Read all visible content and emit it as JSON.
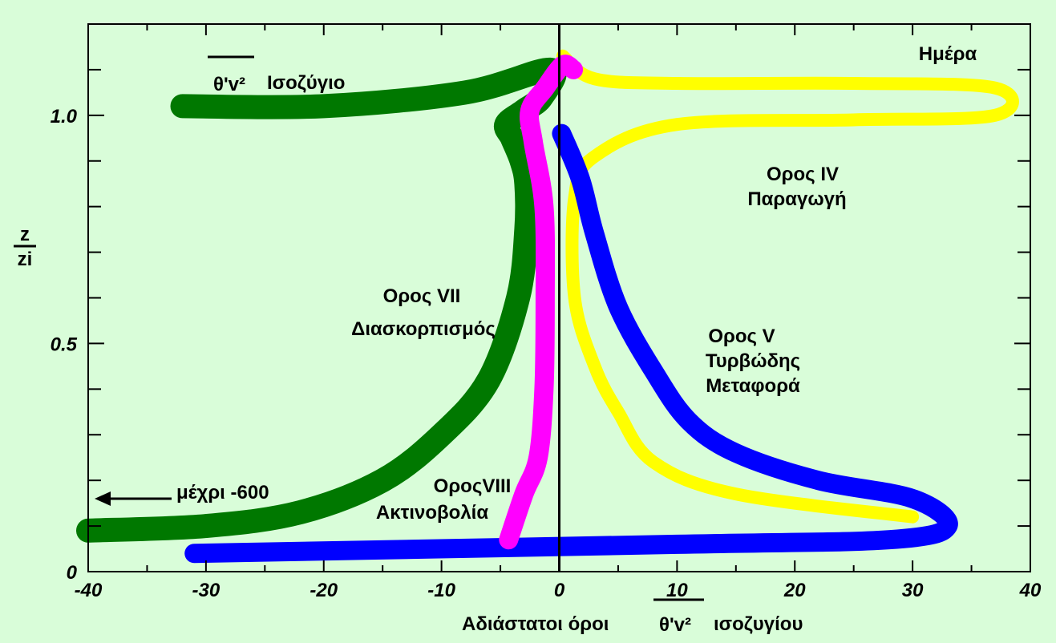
{
  "colors": {
    "background": "#d9fdd9",
    "term_vii": "#007800",
    "term_viii": "#ff00ff",
    "term_iv": "#ffff00",
    "term_v": "#0000ff"
  },
  "chart_data": {
    "type": "line",
    "title": "",
    "panel_label": "Ημέρα",
    "budget_label": "Ισοζύγιο",
    "budget_symbol": "θ'v²",
    "xlabel": "Αδιάστατοι όροι",
    "xlabel_symbol": "10 / θ'v²",
    "xlabel_suffix": "ισοζυγίου",
    "ylabel": "z / zi",
    "ylabel_numerator": "z",
    "ylabel_denominator": "zi",
    "xlim": [
      -40,
      40
    ],
    "ylim": [
      0,
      1.2
    ],
    "x_ticks": [
      "-40",
      "-30",
      "-20",
      "-10",
      "0",
      "10",
      "20",
      "30",
      "40"
    ],
    "y_ticks": [
      "0",
      "0.5",
      "1.0"
    ],
    "grid": false,
    "series": [
      {
        "name": "Ορος VII Διασκορπισμός",
        "name_line1": "Ορος VII",
        "name_line2": "Διασκορπισμός",
        "color": "#007800",
        "x": [
          -40,
          -30,
          -22,
          -15,
          -10,
          -6,
          -3.5,
          -2.8,
          -2.8,
          -3.2,
          -4,
          -4.5,
          -3,
          -1.5,
          -0.8,
          -8,
          -20,
          -32
        ],
        "y": [
          0.09,
          0.1,
          0.13,
          0.2,
          0.3,
          0.42,
          0.6,
          0.75,
          0.85,
          0.9,
          0.95,
          0.98,
          1.01,
          1.04,
          1.1,
          1.05,
          1.02,
          1.02
        ]
      },
      {
        "name": "ΟροςVIII Ακτινοβολία",
        "name_line1": "ΟροςVIII",
        "name_line2": "Ακτινοβολία",
        "color": "#ff00ff",
        "x": [
          -4.3,
          -3,
          -1.8,
          -1.3,
          -1.2,
          -1.3,
          -2.2,
          -2.5,
          -1.2,
          0.3,
          1.2
        ],
        "y": [
          0.07,
          0.17,
          0.25,
          0.4,
          0.6,
          0.8,
          0.94,
          1.01,
          1.06,
          1.11,
          1.1
        ]
      },
      {
        "name": "Ορος IV Παραγωγή",
        "name_line1": "Ορος IV",
        "name_line2": "Παραγωγή",
        "color": "#ffff00",
        "x": [
          0.3,
          3,
          10,
          25,
          37,
          37,
          25,
          10,
          3,
          1.3,
          1.3,
          3,
          5,
          8,
          15,
          30
        ],
        "y": [
          1.13,
          1.08,
          1.07,
          1.07,
          1.06,
          1.0,
          0.99,
          0.98,
          0.91,
          0.82,
          0.6,
          0.45,
          0.35,
          0.24,
          0.17,
          0.12
        ]
      },
      {
        "name": "Ορος V Τυρβώδης Μεταφορά",
        "name_line1": "Ορος V",
        "name_line2": "Τυρβώδης",
        "name_line3": "Μεταφορά",
        "color": "#0000ff",
        "x": [
          0.2,
          1.8,
          3,
          5,
          8,
          11,
          15,
          22,
          30,
          33,
          28,
          10,
          -31
        ],
        "y": [
          0.96,
          0.86,
          0.74,
          0.58,
          0.44,
          0.33,
          0.26,
          0.2,
          0.16,
          0.1,
          0.07,
          0.06,
          0.04
        ]
      }
    ],
    "arrow_annotation": "μέχρι -600"
  }
}
